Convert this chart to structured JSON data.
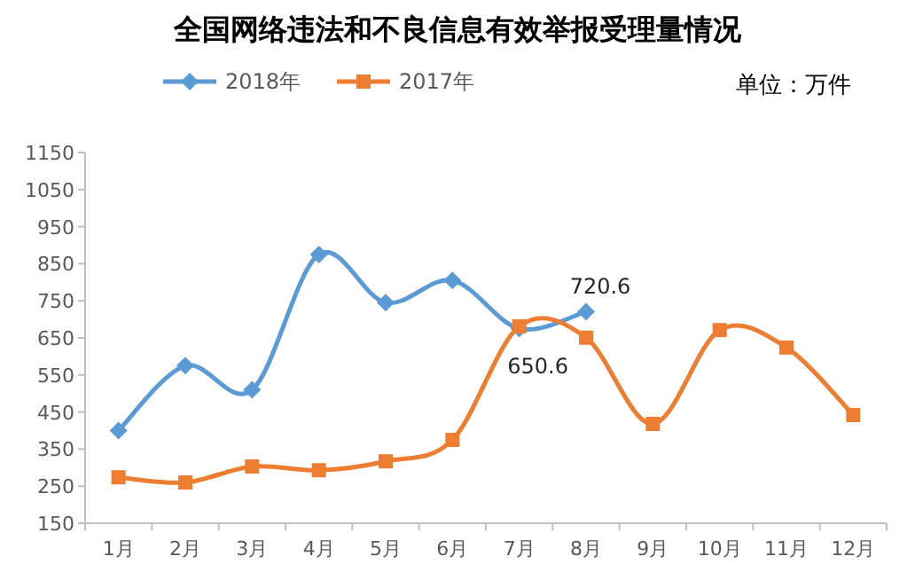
{
  "chart_data": {
    "type": "line",
    "title": "全国网络违法和不良信息有效举报受理量情况",
    "annotations": [
      "单位：万件"
    ],
    "categories": [
      "1月",
      "2月",
      "3月",
      "4月",
      "5月",
      "6月",
      "7月",
      "8月",
      "9月",
      "10月",
      "11月",
      "12月"
    ],
    "series": [
      {
        "name": "2018年",
        "color": "#5b9bd5",
        "marker": "diamond",
        "values": [
          400,
          575,
          510,
          875,
          745,
          805,
          675,
          720.6,
          null,
          null,
          null,
          null
        ],
        "value_labels": [
          null,
          null,
          null,
          null,
          null,
          null,
          null,
          "720.6",
          null,
          null,
          null,
          null
        ]
      },
      {
        "name": "2017年",
        "color": "#ed7d31",
        "marker": "square",
        "values": [
          274,
          260,
          303,
          293,
          317,
          375,
          681,
          650.6,
          418,
          671,
          624,
          442
        ],
        "value_labels": [
          null,
          null,
          null,
          null,
          null,
          null,
          null,
          "650.6",
          null,
          null,
          null,
          null
        ]
      }
    ],
    "ylim": [
      150,
      1150
    ],
    "yticks": [
      150,
      250,
      350,
      450,
      550,
      650,
      750,
      850,
      950,
      1050,
      1150
    ],
    "legend": "top",
    "grid": false
  }
}
